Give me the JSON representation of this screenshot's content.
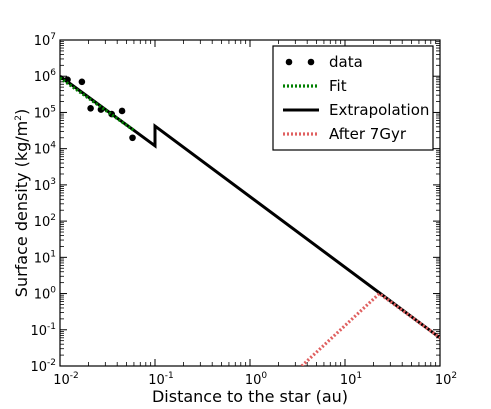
{
  "chart_data": {
    "type": "line",
    "xlabel": "Distance to the star (au)",
    "ylabel_main": "Surface density (kg/m",
    "ylabel_sup": "2",
    "ylabel_end": ")",
    "x_scale": "log",
    "y_scale": "log",
    "xlim": [
      0.01,
      100
    ],
    "ylim": [
      0.01,
      10000000
    ],
    "x_ticks": [
      {
        "base": "10",
        "exp": "-2",
        "value": 0.01
      },
      {
        "base": "10",
        "exp": "-1",
        "value": 0.1
      },
      {
        "base": "10",
        "exp": "0",
        "value": 1
      },
      {
        "base": "10",
        "exp": "1",
        "value": 10
      },
      {
        "base": "10",
        "exp": "2",
        "value": 100
      }
    ],
    "y_ticks": [
      {
        "base": "10",
        "exp": "-2",
        "value": 0.01
      },
      {
        "base": "10",
        "exp": "-1",
        "value": 0.1
      },
      {
        "base": "10",
        "exp": "0",
        "value": 1
      },
      {
        "base": "10",
        "exp": "1",
        "value": 10
      },
      {
        "base": "10",
        "exp": "2",
        "value": 100
      },
      {
        "base": "10",
        "exp": "3",
        "value": 1000
      },
      {
        "base": "10",
        "exp": "4",
        "value": 10000
      },
      {
        "base": "10",
        "exp": "5",
        "value": 100000
      },
      {
        "base": "10",
        "exp": "6",
        "value": 1000000
      },
      {
        "base": "10",
        "exp": "7",
        "value": 10000000
      }
    ],
    "legend_position": "top-right",
    "series": [
      {
        "name": "data",
        "kind": "scatter",
        "color": "#000000",
        "points": [
          {
            "x": 0.012,
            "y": 800000
          },
          {
            "x": 0.017,
            "y": 700000
          },
          {
            "x": 0.021,
            "y": 130000
          },
          {
            "x": 0.027,
            "y": 120000
          },
          {
            "x": 0.035,
            "y": 90000
          },
          {
            "x": 0.045,
            "y": 110000
          },
          {
            "x": 0.058,
            "y": 20000
          }
        ]
      },
      {
        "name": "Fit",
        "kind": "line",
        "style": "dotted",
        "color": "#008000",
        "points": [
          {
            "x": 0.01,
            "y": 900000
          },
          {
            "x": 0.06,
            "y": 32000
          }
        ]
      },
      {
        "name": "Extrapolation",
        "kind": "line",
        "style": "solid",
        "color": "#000000",
        "points": [
          {
            "x": 0.01,
            "y": 1000000
          },
          {
            "x": 0.1,
            "y": 12000
          },
          {
            "x": 0.1,
            "y": 42000
          },
          {
            "x": 100,
            "y": 0.06
          }
        ]
      },
      {
        "name": "After 7Gyr",
        "kind": "line",
        "style": "dotted",
        "color": "#e06060",
        "points": [
          {
            "x": 3.5,
            "y": 0.01
          },
          {
            "x": 23,
            "y": 1.0
          },
          {
            "x": 100,
            "y": 0.06
          }
        ]
      }
    ]
  }
}
